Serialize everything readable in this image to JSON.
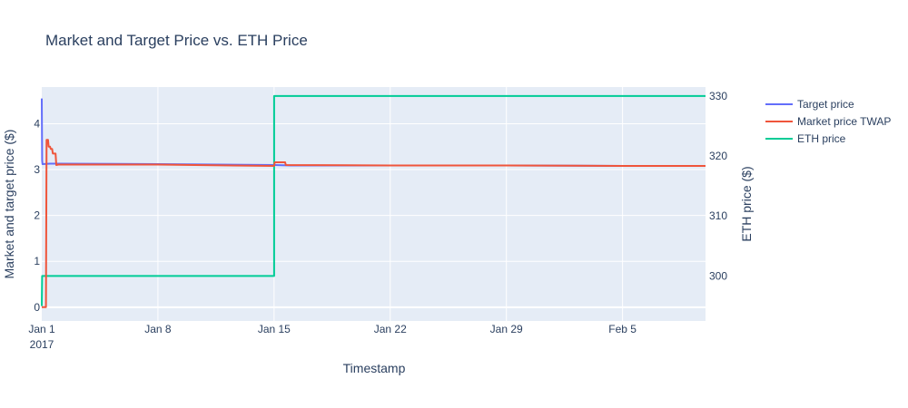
{
  "chart_data": {
    "type": "line",
    "title": "Market and Target Price vs. ETH Price",
    "xlabel": "Timestamp",
    "ylabel_left": "Market and target price ($)",
    "ylabel_right": "ETH price ($)",
    "x_range": [
      "2017-01-01",
      "2017-02-10"
    ],
    "y_left_range": [
      -0.3,
      4.8
    ],
    "y_right_range": [
      292.5,
      331.5
    ],
    "x_ticks": [
      {
        "date": "2017-01-01",
        "label": "Jan 1",
        "sublabel": "2017"
      },
      {
        "date": "2017-01-08",
        "label": "Jan 8"
      },
      {
        "date": "2017-01-15",
        "label": "Jan 15"
      },
      {
        "date": "2017-01-22",
        "label": "Jan 22"
      },
      {
        "date": "2017-01-29",
        "label": "Jan 29"
      },
      {
        "date": "2017-02-05",
        "label": "Feb 5"
      }
    ],
    "y_left_ticks": [
      0,
      1,
      2,
      3,
      4
    ],
    "y_right_ticks": [
      300,
      310,
      320,
      330
    ],
    "grid": true,
    "legend_position": "right",
    "series": [
      {
        "name": "Target price",
        "color": "#636efa",
        "axis": "left",
        "x": [
          "2017-01-01T00:00",
          "2017-01-01T00:30",
          "2017-01-01T01:00",
          "2017-01-01T12:00",
          "2017-01-02",
          "2017-01-08",
          "2017-01-15",
          "2017-01-16",
          "2017-01-22",
          "2017-01-29",
          "2017-02-05",
          "2017-02-10"
        ],
        "y": [
          4.55,
          3.2,
          3.12,
          3.13,
          3.13,
          3.12,
          3.1,
          3.09,
          3.09,
          3.09,
          3.08,
          3.08
        ]
      },
      {
        "name": "Market price TWAP",
        "color": "#ef553b",
        "axis": "left",
        "x": [
          "2017-01-01T00:00",
          "2017-01-01T06:00",
          "2017-01-01T07:00",
          "2017-01-01T09:00",
          "2017-01-01T10:00",
          "2017-01-01T12:00",
          "2017-01-01T13:00",
          "2017-01-01T15:00",
          "2017-01-01T16:00",
          "2017-01-01T20:00",
          "2017-01-01T21:00",
          "2017-01-02T00:00",
          "2017-01-08",
          "2017-01-15T00:00",
          "2017-01-15T01:00",
          "2017-01-15T16:00",
          "2017-01-15T17:00",
          "2017-01-22",
          "2017-01-29",
          "2017-02-05",
          "2017-02-10"
        ],
        "y": [
          0.0,
          0.0,
          3.65,
          3.65,
          3.5,
          3.5,
          3.45,
          3.45,
          3.35,
          3.35,
          3.1,
          3.11,
          3.11,
          3.08,
          3.16,
          3.16,
          3.1,
          3.09,
          3.09,
          3.08,
          3.08
        ]
      },
      {
        "name": "ETH price",
        "color": "#00cc96",
        "axis": "right",
        "x": [
          "2017-01-01T00:00",
          "2017-01-01T00:30",
          "2017-01-15T00:00",
          "2017-01-15T00:01",
          "2017-02-10"
        ],
        "y": [
          295,
          300,
          300,
          330,
          330
        ]
      }
    ]
  }
}
